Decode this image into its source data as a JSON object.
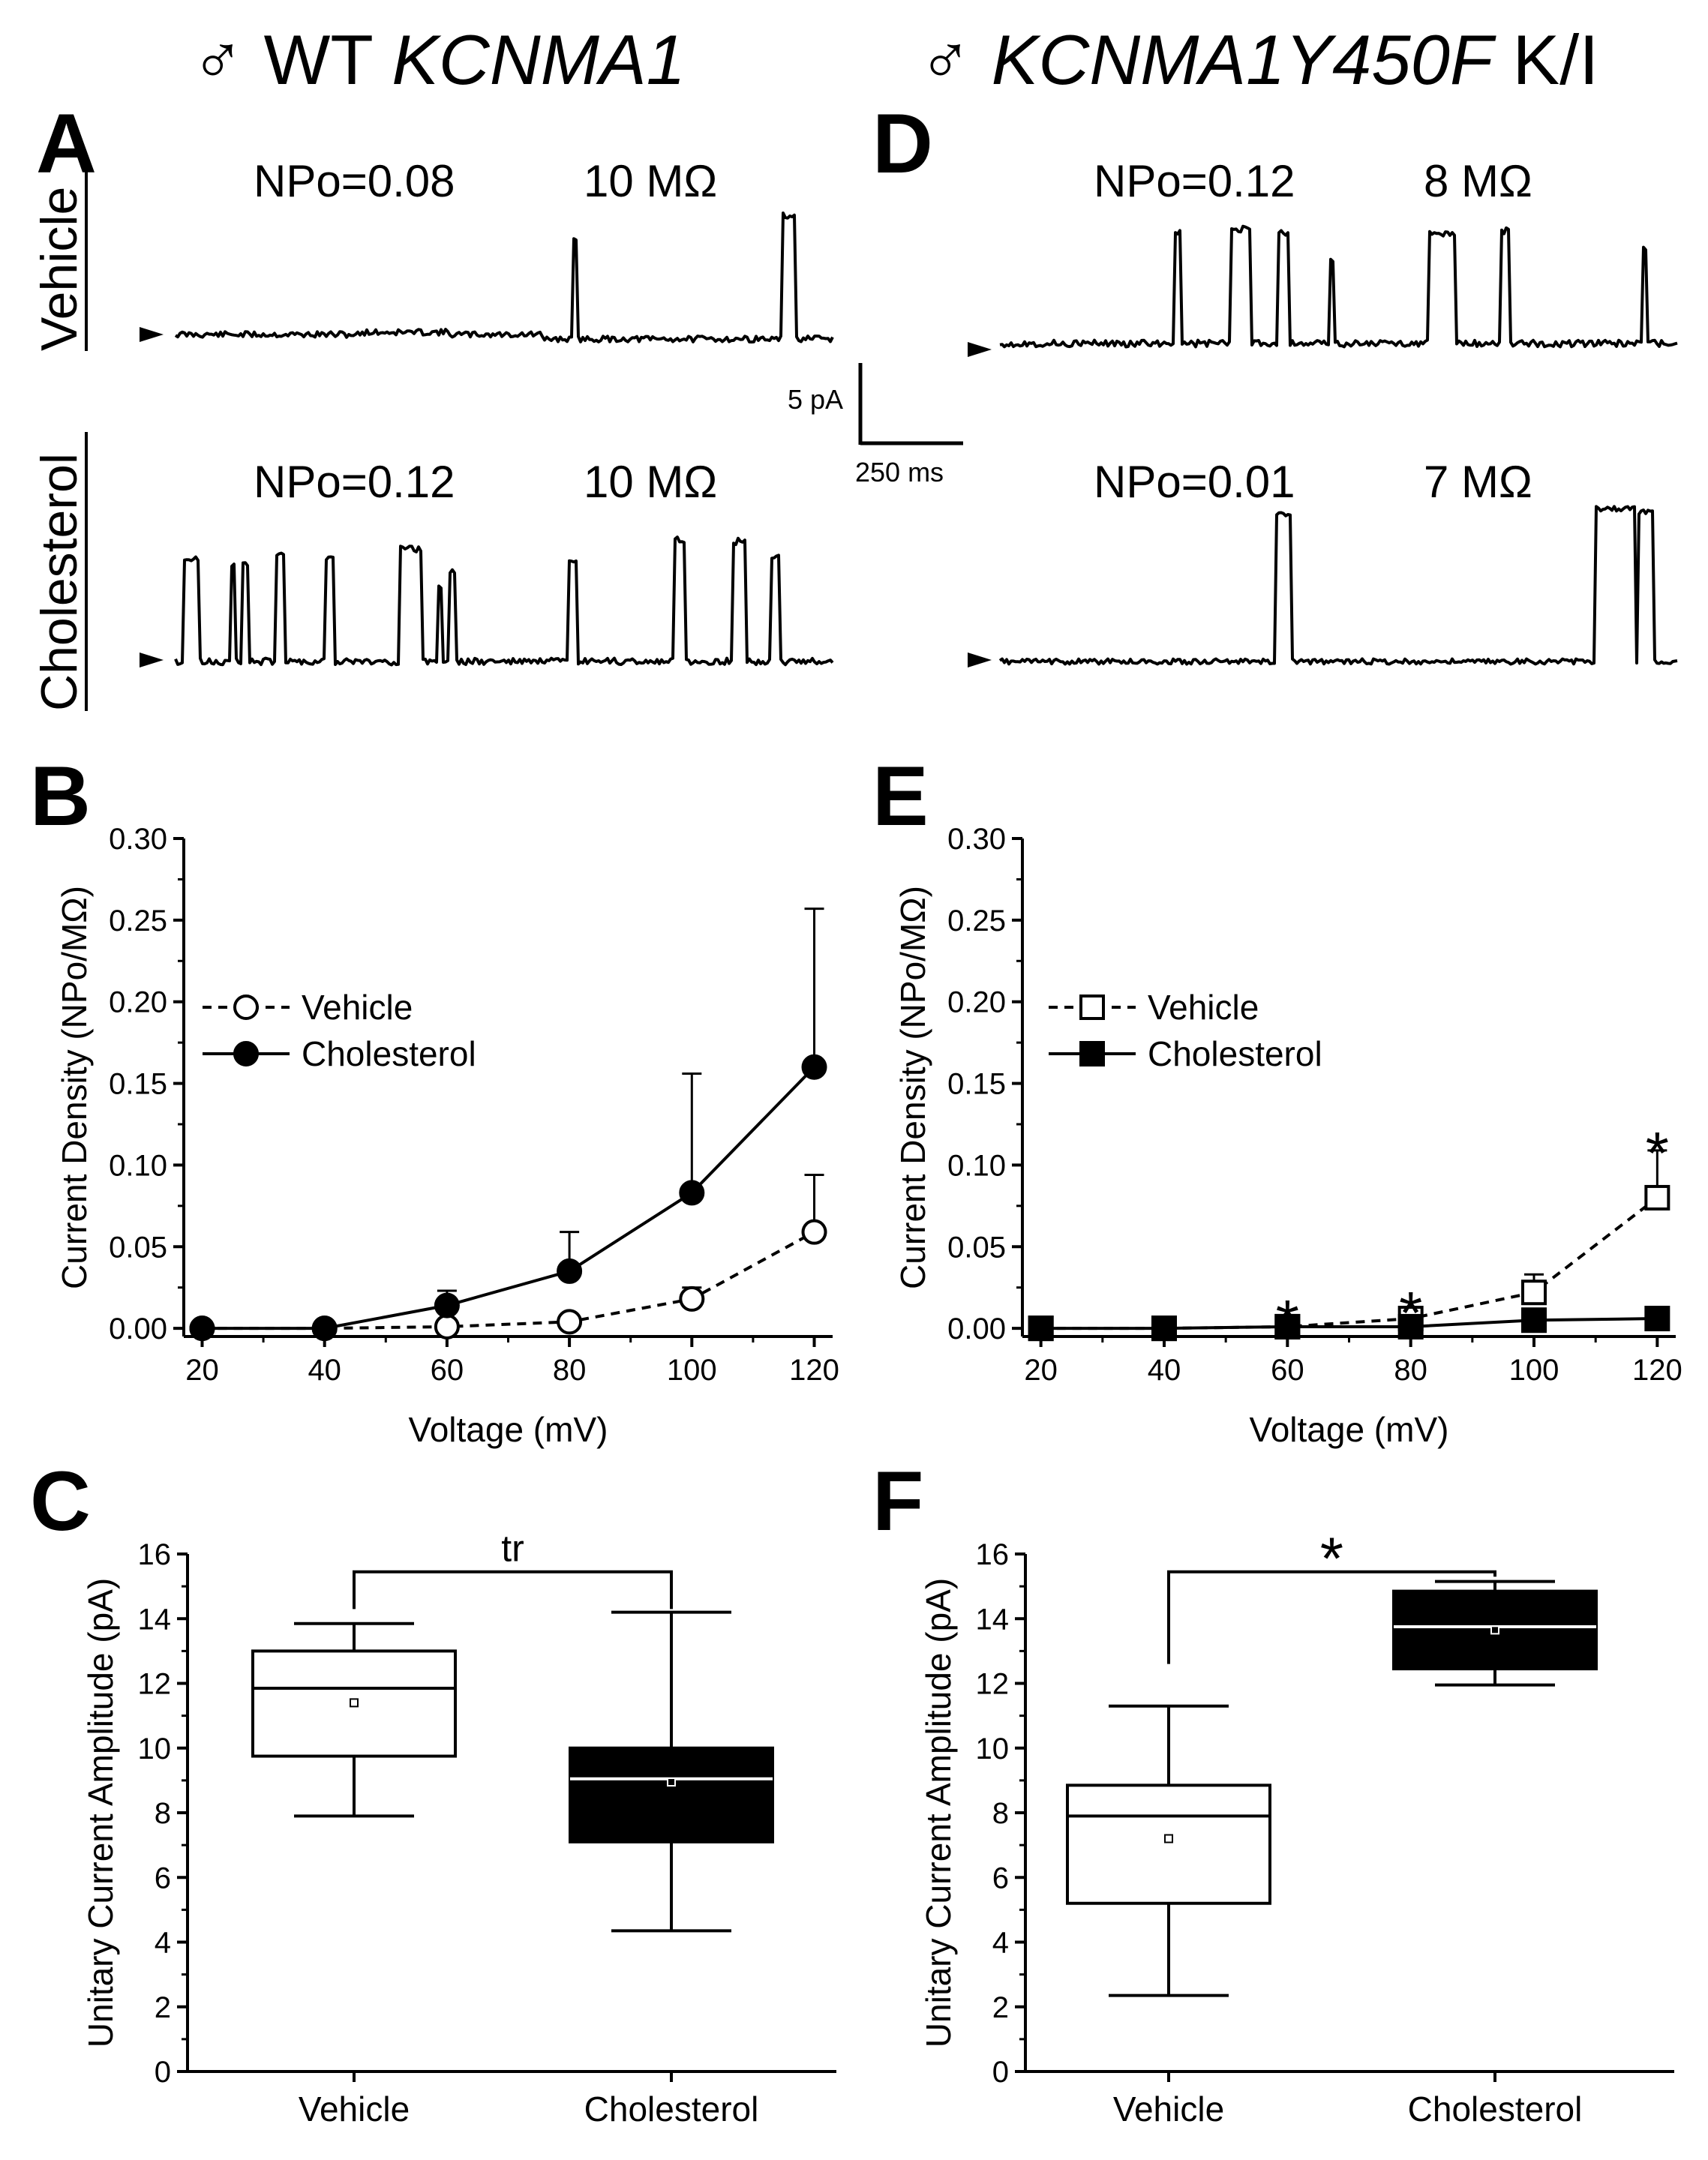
{
  "headers": {
    "left": {
      "symbol": "♂",
      "plain": "WT",
      "italic": "KCNMA1"
    },
    "right": {
      "symbol": "♂",
      "italic": "KCNMA1Y450F",
      "plain": "K/I"
    }
  },
  "panels": {
    "A": "A",
    "B": "B",
    "C": "C",
    "D": "D",
    "E": "E",
    "F": "F"
  },
  "traces": {
    "row_labels": {
      "top": "Vehicle",
      "bottom": "Cholesterol"
    },
    "A_vehicle": {
      "npo": "NPo=0.08",
      "resistance": "10 MΩ"
    },
    "A_cholesterol": {
      "npo": "NPo=0.12",
      "resistance": "10 MΩ"
    },
    "D_vehicle": {
      "npo": "NPo=0.12",
      "resistance": "8 MΩ"
    },
    "D_cholesterol": {
      "npo": "NPo=0.01",
      "resistance": "7 MΩ"
    },
    "scale_bar": {
      "current": "5 pA",
      "time": "250 ms"
    }
  },
  "chart_data": [
    {
      "panel": "B",
      "type": "line",
      "xlabel": "Voltage (mV)",
      "ylabel": "Current Density (NPo/MΩ)",
      "x": [
        20,
        40,
        60,
        80,
        100,
        120
      ],
      "xticks": [
        "20",
        "40",
        "60",
        "80",
        "100",
        "120"
      ],
      "yticks": [
        "0.00",
        "0.05",
        "0.10",
        "0.15",
        "0.20",
        "0.25",
        "0.30"
      ],
      "xlim": [
        17,
        123
      ],
      "ylim": [
        -0.005,
        0.3
      ],
      "series": [
        {
          "name": "Vehicle",
          "marker": "open-circle",
          "line": "dashed",
          "values": [
            0.0,
            0.0,
            0.001,
            0.004,
            0.018,
            0.059
          ],
          "errors": [
            0,
            0,
            0.001,
            0.002,
            0.007,
            0.035
          ]
        },
        {
          "name": "Cholesterol",
          "marker": "filled-circle",
          "line": "solid",
          "values": [
            0.0,
            0.0,
            0.014,
            0.035,
            0.083,
            0.16
          ],
          "errors": [
            0,
            0,
            0.009,
            0.024,
            0.073,
            0.097
          ]
        }
      ],
      "legend": [
        "Vehicle",
        "Cholesterol"
      ],
      "annotations": []
    },
    {
      "panel": "E",
      "type": "line",
      "xlabel": "Voltage (mV)",
      "ylabel": "Current Density (NPo/MΩ)",
      "x": [
        20,
        40,
        60,
        80,
        100,
        120
      ],
      "xticks": [
        "20",
        "40",
        "60",
        "80",
        "100",
        "120"
      ],
      "yticks": [
        "0.00",
        "0.05",
        "0.10",
        "0.15",
        "0.20",
        "0.25",
        "0.30"
      ],
      "xlim": [
        17,
        123
      ],
      "ylim": [
        -0.005,
        0.3
      ],
      "series": [
        {
          "name": "Vehicle",
          "marker": "open-square",
          "line": "dashed",
          "values": [
            0.0,
            0.0,
            0.001,
            0.006,
            0.022,
            0.08
          ],
          "errors": [
            0,
            0,
            0.001,
            0.002,
            0.011,
            0.029
          ]
        },
        {
          "name": "Cholesterol",
          "marker": "filled-square",
          "line": "solid",
          "values": [
            0.0,
            0.0,
            0.001,
            0.001,
            0.005,
            0.006
          ],
          "errors": [
            0,
            0,
            0,
            0,
            0.001,
            0.001
          ]
        }
      ],
      "legend": [
        "Vehicle",
        "Cholesterol"
      ],
      "annotations": [
        {
          "text": "*",
          "x": 60,
          "y": 0.012
        },
        {
          "text": "*",
          "x": 80,
          "y": 0.017
        },
        {
          "text": "*",
          "x": 120,
          "y": 0.115
        }
      ]
    },
    {
      "panel": "C",
      "type": "box",
      "ylabel": "Unitary Current Amplitude (pA)",
      "ylim": [
        0,
        16
      ],
      "yticks": [
        "0",
        "2",
        "4",
        "6",
        "8",
        "10",
        "12",
        "14",
        "16"
      ],
      "categories": [
        "Vehicle",
        "Cholesterol"
      ],
      "boxes": [
        {
          "name": "Vehicle",
          "fill": "white",
          "min": 7.9,
          "q1": 9.75,
          "median": 11.85,
          "q3": 13.0,
          "max": 13.85,
          "mean": 11.4
        },
        {
          "name": "Cholesterol",
          "fill": "black",
          "min": 4.35,
          "q1": 7.1,
          "median": 9.05,
          "q3": 10.0,
          "max": 14.2,
          "mean": 8.95
        }
      ],
      "significance": "tr"
    },
    {
      "panel": "F",
      "type": "box",
      "ylabel": "Unitary Current Amplitude (pA)",
      "ylim": [
        0,
        16
      ],
      "yticks": [
        "0",
        "2",
        "4",
        "6",
        "8",
        "10",
        "12",
        "14",
        "16"
      ],
      "categories": [
        "Vehicle",
        "Cholesterol"
      ],
      "boxes": [
        {
          "name": "Vehicle",
          "fill": "white",
          "min": 2.35,
          "q1": 5.2,
          "median": 7.9,
          "q3": 8.85,
          "max": 11.3,
          "mean": 7.2
        },
        {
          "name": "Cholesterol",
          "fill": "black",
          "min": 11.95,
          "q1": 12.45,
          "median": 13.75,
          "q3": 14.85,
          "max": 15.15,
          "mean": 13.65
        }
      ],
      "significance": "*"
    }
  ]
}
